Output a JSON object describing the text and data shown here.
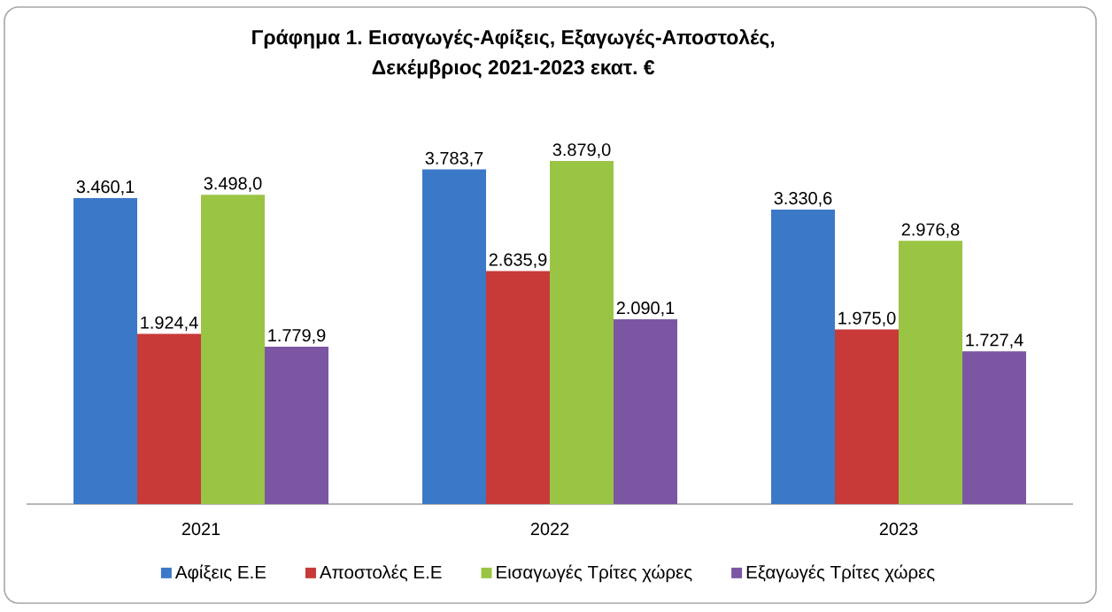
{
  "chart_data": {
    "type": "bar",
    "title": "Γράφημα 1. Εισαγωγές-Αφίξεις, Εξαγωγές-Αποστολές, Δεκέμβριος 2021-2023 εκατ. €",
    "categories": [
      "2021",
      "2022",
      "2023"
    ],
    "series": [
      {
        "name": "Αφίξεις Ε.Ε",
        "color": "#3c78c8",
        "values": [
          3460.1,
          3783.7,
          3330.6
        ],
        "value_labels": [
          "3.460,1",
          "3.783,7",
          "3.330,6"
        ]
      },
      {
        "name": "Αποστολές Ε.Ε",
        "color": "#c83a38",
        "values": [
          1924.4,
          2635.9,
          1975.0
        ],
        "value_labels": [
          "1.924,4",
          "2.635,9",
          "1.975,0"
        ]
      },
      {
        "name": "Εισαγωγές Τρίτες χώρες",
        "color": "#9ac443",
        "values": [
          3498.0,
          3879.0,
          2976.8
        ],
        "value_labels": [
          "3.498,0",
          "3.879,0",
          "2.976,8"
        ]
      },
      {
        "name": "Εξαγωγές Τρίτες χώρες",
        "color": "#7b57a3",
        "values": [
          1779.9,
          2090.1,
          1727.4
        ],
        "value_labels": [
          "1.779,9",
          "2.090,1",
          "1.727,4"
        ]
      }
    ],
    "legend": "bottom"
  }
}
